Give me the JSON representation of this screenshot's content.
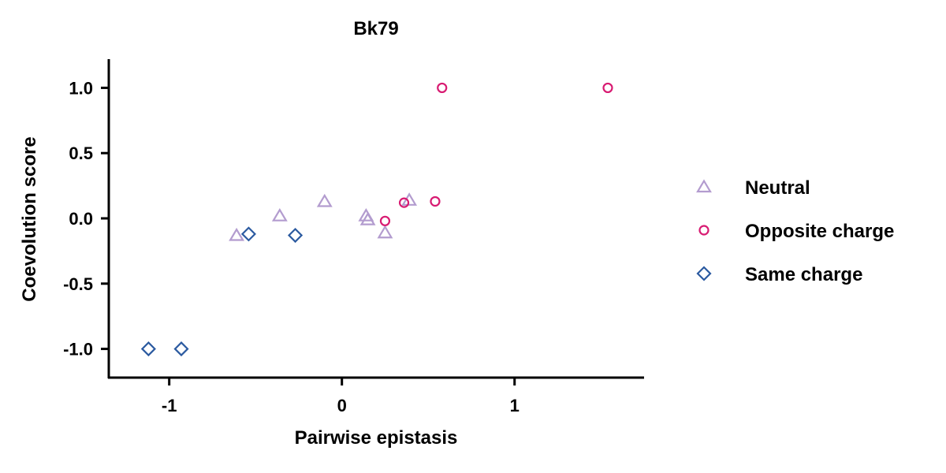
{
  "chart_data": {
    "type": "scatter",
    "title": "Bk79",
    "xlabel": "Pairwise epistasis",
    "ylabel": "Coevolution score",
    "xlim": [
      -1.35,
      1.75
    ],
    "ylim": [
      -1.22,
      1.22
    ],
    "xticks": [
      -1,
      0,
      1
    ],
    "xtick_labels": [
      "-1",
      "0",
      "1"
    ],
    "yticks": [
      1.0,
      0.5,
      0.0,
      -0.5,
      -1.0
    ],
    "ytick_labels": [
      "1.0",
      "0.5",
      "0.0",
      "-0.5",
      "-1.0"
    ],
    "grid": false,
    "legend_position": "right",
    "series": [
      {
        "name": "Neutral",
        "marker": "triangle",
        "color": "#b39ccf",
        "points": [
          [
            -0.61,
            -0.13
          ],
          [
            -0.36,
            0.02
          ],
          [
            -0.1,
            0.13
          ],
          [
            0.14,
            0.02
          ],
          [
            0.15,
            -0.01
          ],
          [
            0.25,
            -0.11
          ],
          [
            0.39,
            0.14
          ]
        ]
      },
      {
        "name": "Opposite charge",
        "marker": "circle",
        "color": "#d81b72",
        "points": [
          [
            0.25,
            -0.02
          ],
          [
            0.36,
            0.12
          ],
          [
            0.54,
            0.13
          ],
          [
            0.58,
            1.0
          ],
          [
            1.54,
            1.0
          ]
        ]
      },
      {
        "name": "Same charge",
        "marker": "diamond",
        "color": "#2b5aa0",
        "points": [
          [
            -1.12,
            -1.0
          ],
          [
            -0.93,
            -1.0
          ],
          [
            -0.54,
            -0.12
          ],
          [
            -0.27,
            -0.13
          ]
        ]
      }
    ]
  }
}
